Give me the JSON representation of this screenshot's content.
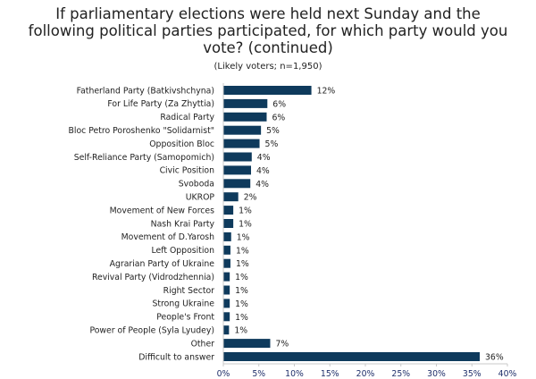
{
  "chart_data": {
    "type": "bar",
    "orientation": "horizontal",
    "title": "If parliamentary elections were held next Sunday and the following political parties participated, for which party would you vote? (continued)",
    "title_lines": [
      "If parliamentary elections were held next Sunday and the",
      "following political parties participated, for which party would you",
      "vote? (continued)"
    ],
    "subtitle": "(Likely voters; n=1,950)",
    "xlabel": "",
    "ylabel": "",
    "xlim": [
      0,
      40
    ],
    "grid": false,
    "bar_color": "#0e3a5c",
    "categories": [
      "Fatherland Party (Batkivshchyna)",
      "For Life Party (Za Zhyttia)",
      "Radical Party",
      "Bloc Petro Poroshenko \"Solidarnist\"",
      "Opposition Bloc",
      "Self-Reliance Party (Samopomich)",
      "Civic Position",
      "Svoboda",
      "UKROP",
      "Movement of New Forces",
      "Nash Krai Party",
      "Movement of D.Yarosh",
      "Left Opposition",
      "Agrarian Party of Ukraine",
      "Revival Party (Vidrodzhennia)",
      "Right Sector",
      "Strong Ukraine",
      "People's Front",
      "Power of People (Syla Lyudey)",
      "Other",
      "Difficult to answer"
    ],
    "values": [
      12.4,
      6.2,
      6.1,
      5.3,
      5.1,
      4.0,
      3.9,
      3.8,
      2.1,
      1.4,
      1.4,
      1.1,
      1.0,
      1.0,
      0.9,
      0.9,
      0.9,
      0.9,
      0.8,
      6.6,
      36.1
    ],
    "data_labels": [
      "12%",
      "6%",
      "6%",
      "5%",
      "5%",
      "4%",
      "4%",
      "4%",
      "2%",
      "1%",
      "1%",
      "1%",
      "1%",
      "1%",
      "1%",
      "1%",
      "1%",
      "1%",
      "1%",
      "7%",
      "36%"
    ],
    "ticks": [
      0,
      5,
      10,
      15,
      20,
      25,
      30,
      35,
      40
    ],
    "tick_labels": [
      "0%",
      "5%",
      "10%",
      "15%",
      "20%",
      "25%",
      "30%",
      "35%",
      "40%"
    ]
  }
}
